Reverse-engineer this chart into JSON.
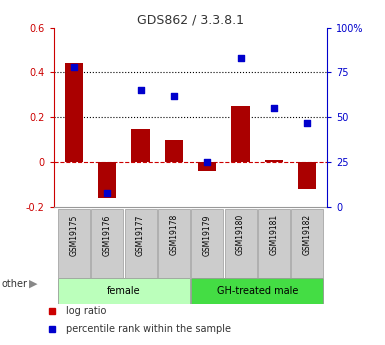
{
  "title": "GDS862 / 3.3.8.1",
  "samples": [
    "GSM19175",
    "GSM19176",
    "GSM19177",
    "GSM19178",
    "GSM19179",
    "GSM19180",
    "GSM19181",
    "GSM19182"
  ],
  "log_ratio": [
    0.44,
    -0.16,
    0.15,
    0.1,
    -0.04,
    0.25,
    0.01,
    -0.12
  ],
  "percentile_rank": [
    78,
    8,
    65,
    62,
    25,
    83,
    55,
    47
  ],
  "groups": [
    {
      "label": "female",
      "indices": [
        0,
        1,
        2,
        3
      ],
      "color": "#bbffbb"
    },
    {
      "label": "GH-treated male",
      "indices": [
        4,
        5,
        6,
        7
      ],
      "color": "#44dd44"
    }
  ],
  "ylim_left": [
    -0.2,
    0.6
  ],
  "ylim_right": [
    0,
    100
  ],
  "yticks_left": [
    -0.2,
    0.0,
    0.2,
    0.4,
    0.6
  ],
  "yticks_right": [
    0,
    25,
    50,
    75,
    100
  ],
  "bar_color": "#aa0000",
  "dot_color": "#0000cc",
  "hline_color": "#cc0000",
  "dot_hline_color": "#000000",
  "bg_color": "#ffffff",
  "tick_color_left": "#cc0000",
  "tick_color_right": "#0000cc",
  "legend_items": [
    "log ratio",
    "percentile rank within the sample"
  ],
  "legend_colors": [
    "#cc0000",
    "#0000cc"
  ],
  "other_label": "other",
  "sample_box_color": "#cccccc",
  "sample_box_edge": "#999999"
}
